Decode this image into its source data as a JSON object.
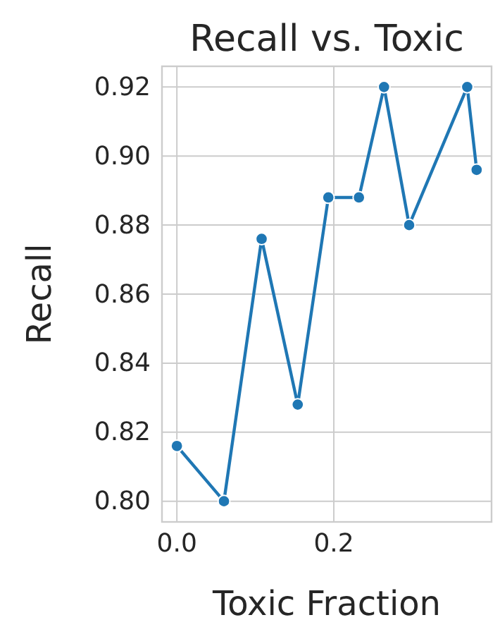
{
  "chart_data": {
    "type": "line",
    "title": "Recall vs. Toxic",
    "xlabel": "Toxic Fraction",
    "ylabel": "Recall",
    "x": [
      0,
      0.06,
      0.108,
      0.154,
      0.193,
      0.232,
      0.264,
      0.296,
      0.37,
      0.382
    ],
    "series": [
      {
        "color": "#1f77b4",
        "values": [
          0.816,
          0.8,
          0.876,
          0.828,
          0.888,
          0.888,
          0.92,
          0.88,
          0.92,
          0.896
        ]
      }
    ],
    "xlim": [
      -0.019,
      0.401
    ],
    "xticks": [
      {
        "value": 0,
        "label": "0.0"
      },
      {
        "value": 0.2,
        "label": "0.2"
      }
    ],
    "ylim": [
      0.794,
      0.926
    ],
    "yticks": [
      {
        "value": 0.8,
        "label": "0.80"
      },
      {
        "value": 0.82,
        "label": "0.82"
      },
      {
        "value": 0.84,
        "label": "0.84"
      },
      {
        "value": 0.86,
        "label": "0.86"
      },
      {
        "value": 0.88,
        "label": "0.88"
      },
      {
        "value": 0.9,
        "label": "0.90"
      },
      {
        "value": 0.92,
        "label": "0.92"
      }
    ],
    "grid": true,
    "marker": "circle",
    "line_style": "solid"
  }
}
